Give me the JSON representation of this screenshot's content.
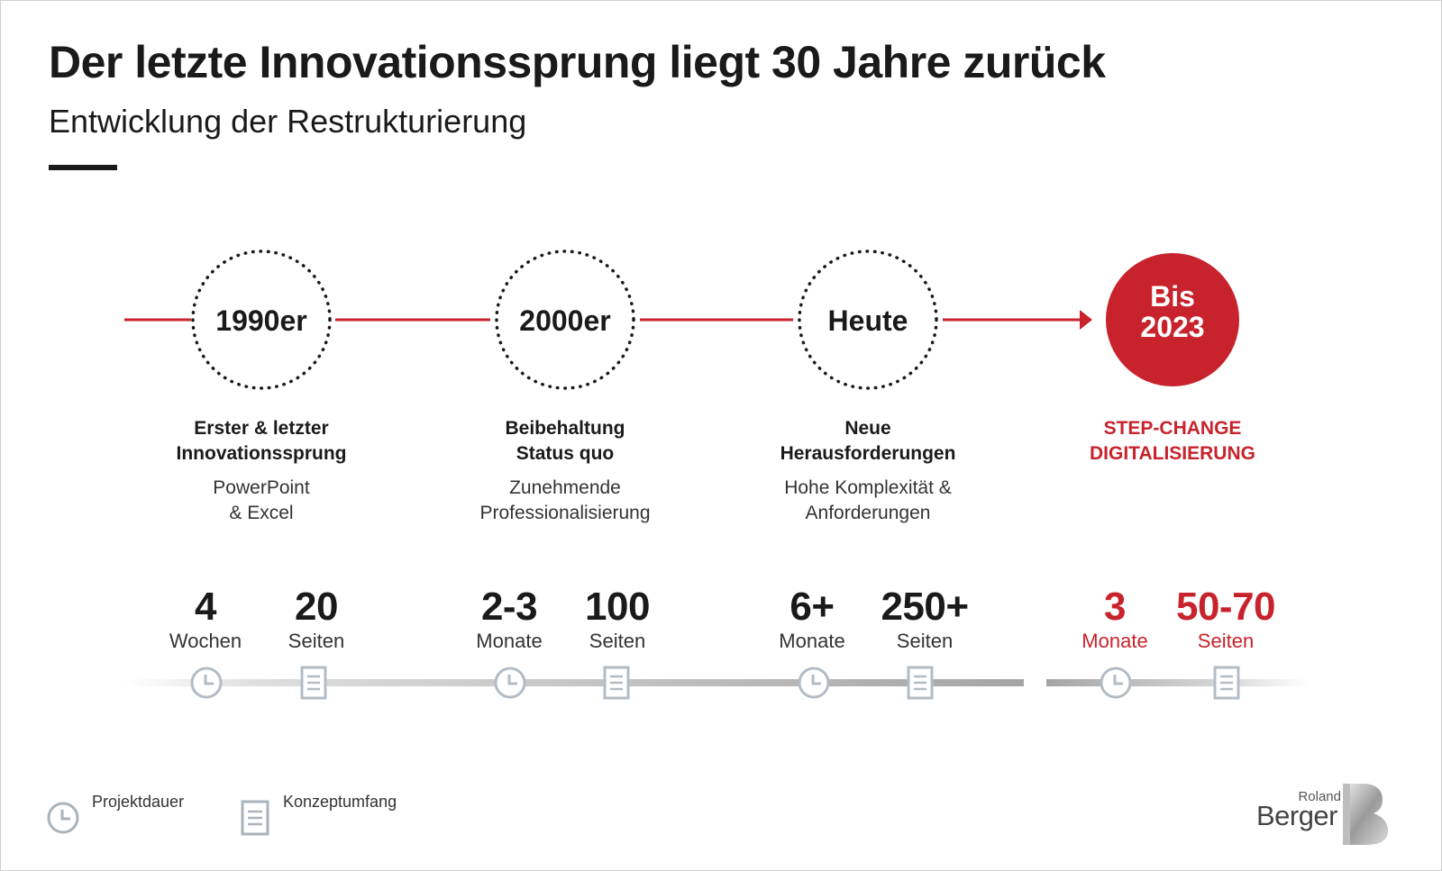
{
  "header": {
    "title": "Der letzte Innovationssprung liegt 30 Jahre zurück",
    "subtitle": "Entwicklung der Restrukturierung"
  },
  "colors": {
    "accent": "#c8232c",
    "text": "#1a1a1a",
    "track": "#a7a7a7",
    "icon": "#b3bcc4"
  },
  "stages": [
    {
      "label": "1990er",
      "heading": "Erster & letzter\nInnovationssprung",
      "description": "PowerPoint\n& Excel",
      "duration_value": "4",
      "duration_unit": "Wochen",
      "scope_value": "20",
      "scope_unit": "Seiten"
    },
    {
      "label": "2000er",
      "heading": "Beibehaltung\nStatus quo",
      "description": "Zunehmende\nProfessionalisierung",
      "duration_value": "2-3",
      "duration_unit": "Monate",
      "scope_value": "100",
      "scope_unit": "Seiten"
    },
    {
      "label": "Heute",
      "heading": "Neue\nHerausforderungen",
      "description": "Hohe Komplexität &\nAnforderungen",
      "duration_value": "6+",
      "duration_unit": "Monate",
      "scope_value": "250+",
      "scope_unit": "Seiten"
    },
    {
      "label": "Bis\n2023",
      "heading": "STEP-CHANGE\nDIGITALISIERUNG",
      "description": "",
      "duration_value": "3",
      "duration_unit": "Monate",
      "scope_value": "50-70",
      "scope_unit": "Seiten"
    }
  ],
  "legend": {
    "duration_label": "Projektdauer",
    "duration_icon": "clock-icon",
    "scope_label": "Konzeptumfang",
    "scope_icon": "document-icon"
  },
  "logo": {
    "word_small": "Roland",
    "word": "Berger"
  }
}
